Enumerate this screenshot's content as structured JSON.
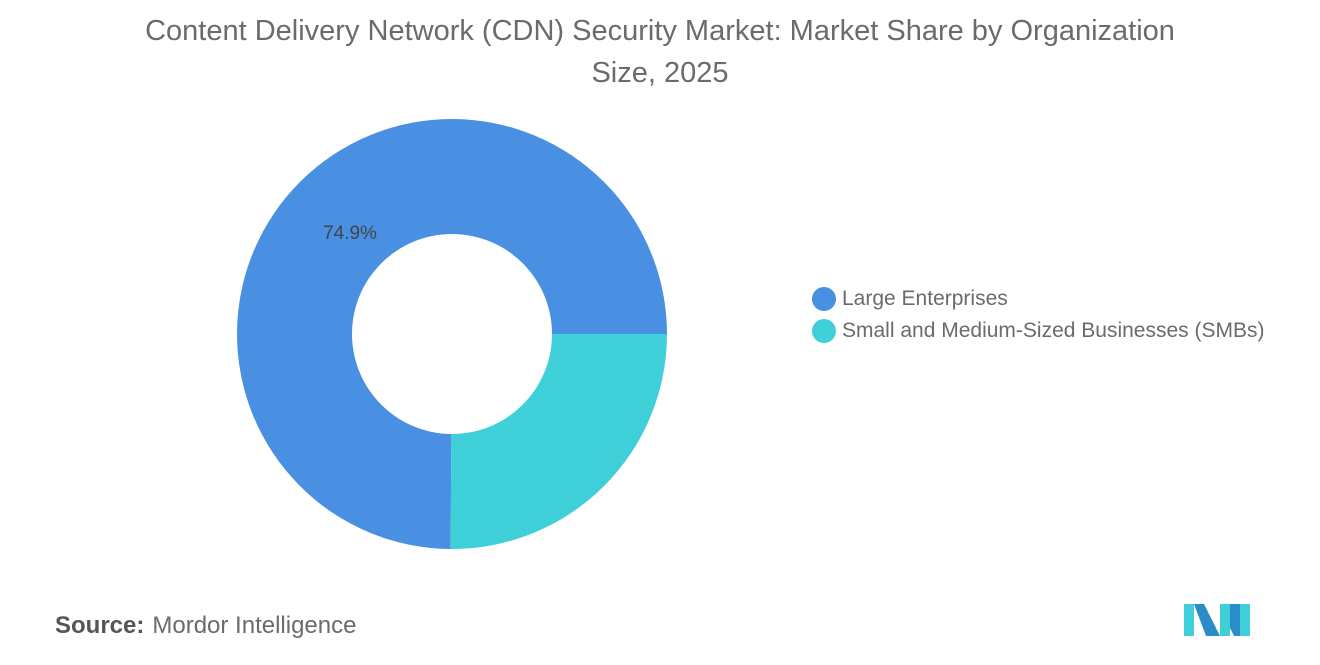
{
  "chart_data": {
    "type": "pie",
    "variant": "donut",
    "title": "Content Delivery Network (CDN) Security Market: Market Share by Organization Size, 2025",
    "categories": [
      "Large Enterprises",
      "Small and Medium-Sized Businesses (SMBs)"
    ],
    "values": [
      74.9,
      25.1
    ],
    "unit": "%",
    "colors": [
      "#4A90E2",
      "#3ECFD9"
    ],
    "data_labels": [
      "74.9%",
      ""
    ],
    "legend_position": "right"
  },
  "source": {
    "label": "Source:",
    "value": "Mordor Intelligence"
  },
  "logo": {
    "icon": "mordor-intelligence-logo"
  }
}
